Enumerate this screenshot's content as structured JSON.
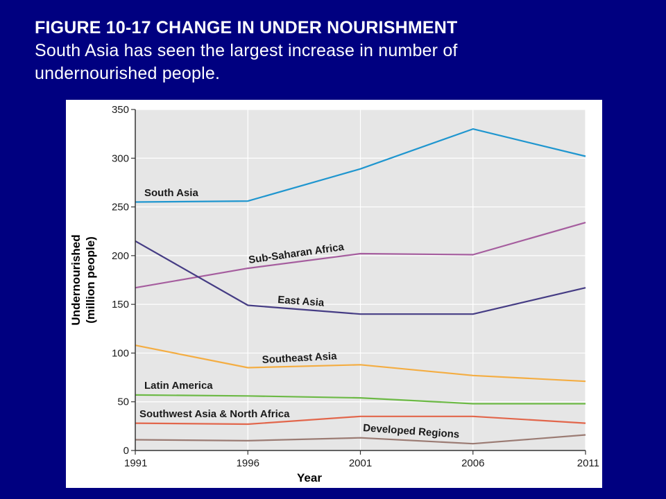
{
  "slide": {
    "title": "FIGURE 10-17 CHANGE IN UNDER NOURISHMENT",
    "subtitle_line1": "South Asia has seen the largest increase in number of",
    "subtitle_line2": "undernourished people."
  },
  "colors": {
    "background": "#000080",
    "panel": "#ffffff",
    "plot_area": "#e6e6e6",
    "gridline": "#ffffff",
    "axis": "#333333"
  },
  "chart_data": {
    "type": "line",
    "x": [
      1991,
      1996,
      2001,
      2006,
      2011
    ],
    "xlabel": "Year",
    "ylabel_line1": "Undernourished",
    "ylabel_line2": "(million people)",
    "ylim": [
      0,
      350
    ],
    "yticks": [
      0,
      50,
      100,
      150,
      200,
      250,
      300,
      350
    ],
    "xticks": [
      1991,
      1996,
      2001,
      2006,
      2011
    ],
    "grid": "vertical lines at each year, horizontal lines every 50",
    "series": [
      {
        "name": "South Asia",
        "color": "#1f96cf",
        "values": [
          255,
          256,
          289,
          330,
          302
        ]
      },
      {
        "name": "Sub-Saharan Africa",
        "color": "#a55d9e",
        "values": [
          167,
          187,
          202,
          201,
          234
        ]
      },
      {
        "name": "East Asia",
        "color": "#453c84",
        "values": [
          215,
          149,
          140,
          140,
          167
        ]
      },
      {
        "name": "Southeast Asia",
        "color": "#f4ad42",
        "values": [
          108,
          85,
          88,
          77,
          71
        ]
      },
      {
        "name": "Latin America",
        "color": "#6cb945",
        "values": [
          57,
          56,
          54,
          48,
          48
        ]
      },
      {
        "name": "Southwest Asia & North Africa",
        "color": "#e2664b",
        "values": [
          28,
          27,
          35,
          35,
          28
        ]
      },
      {
        "name": "Developed Regions",
        "color": "#9b7b73",
        "values": [
          11,
          10,
          13,
          7,
          16
        ]
      }
    ]
  }
}
